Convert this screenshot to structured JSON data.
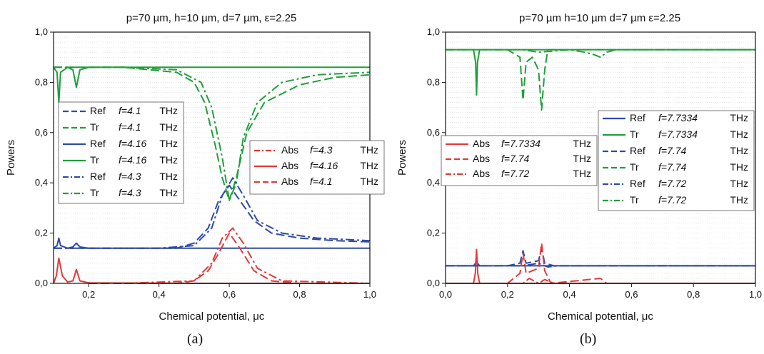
{
  "chart_data": [
    {
      "type": "line",
      "panel_label": "(a)",
      "title": "p=70 µm, h=10 µm, d=7 µm, ε=2.25",
      "xlabel": "Chemical potential, μc",
      "ylabel": "Powers",
      "xlim": [
        0.1,
        1.0
      ],
      "ylim": [
        0.0,
        1.0
      ],
      "x_ticks": [
        "0,2",
        "0,4",
        "0,6",
        "0,8",
        "1,0"
      ],
      "y_ticks": [
        "0,0",
        "0,2",
        "0,4",
        "0,6",
        "0,8",
        "1,0"
      ],
      "grid": "horizontal minor",
      "colors": {
        "ref": "#2e4aa8",
        "tr": "#1e9e3a",
        "abs": "#e43a3a"
      },
      "legends": [
        {
          "placement": "left",
          "entries": [
            {
              "name": "Ref",
              "freq": "f=4.1",
              "unit": "THz",
              "color": "#2e4aa8",
              "dash": "dash"
            },
            {
              "name": "Tr",
              "freq": "f=4.1",
              "unit": "THz",
              "color": "#1e9e3a",
              "dash": "dash"
            },
            {
              "name": "Ref",
              "freq": "f=4.16",
              "unit": "THz",
              "color": "#2e4aa8",
              "dash": "solid"
            },
            {
              "name": "Tr",
              "freq": "f=4.16",
              "unit": "THz",
              "color": "#1e9e3a",
              "dash": "solid"
            },
            {
              "name": "Ref",
              "freq": "f=4.3",
              "unit": "THz",
              "color": "#2e4aa8",
              "dash": "dashdot"
            },
            {
              "name": "Tr",
              "freq": "f=4.3",
              "unit": "THz",
              "color": "#1e9e3a",
              "dash": "dashdot"
            }
          ]
        },
        {
          "placement": "center-right",
          "entries": [
            {
              "name": "Abs",
              "freq": "f=4.3",
              "unit": "THz",
              "color": "#e43a3a",
              "dash": "dashdot"
            },
            {
              "name": "Abs",
              "freq": "f=4.16",
              "unit": "THz",
              "color": "#e43a3a",
              "dash": "solid"
            },
            {
              "name": "Abs",
              "freq": "f=4.1",
              "unit": "THz",
              "color": "#e43a3a",
              "dash": "dash"
            }
          ]
        }
      ],
      "series": [
        {
          "key": "Tr f=4.16",
          "color": "#1e9e3a",
          "dash": "solid",
          "x": [
            0.1,
            0.11,
            0.115,
            0.12,
            0.14,
            0.155,
            0.165,
            0.175,
            0.2,
            0.3,
            0.5,
            0.7,
            1.0
          ],
          "y": [
            0.86,
            0.84,
            0.72,
            0.84,
            0.86,
            0.85,
            0.78,
            0.85,
            0.86,
            0.86,
            0.86,
            0.86,
            0.86
          ]
        },
        {
          "key": "Ref f=4.16",
          "color": "#2e4aa8",
          "dash": "solid",
          "x": [
            0.1,
            0.11,
            0.115,
            0.12,
            0.14,
            0.155,
            0.165,
            0.175,
            0.2,
            0.5,
            1.0
          ],
          "y": [
            0.14,
            0.15,
            0.18,
            0.15,
            0.14,
            0.145,
            0.16,
            0.145,
            0.14,
            0.14,
            0.14
          ]
        },
        {
          "key": "Abs f=4.16",
          "color": "#e43a3a",
          "dash": "solid",
          "x": [
            0.1,
            0.108,
            0.115,
            0.125,
            0.14,
            0.155,
            0.165,
            0.175,
            0.2,
            0.5,
            1.0
          ],
          "y": [
            0.0,
            0.03,
            0.1,
            0.03,
            0.005,
            0.01,
            0.055,
            0.01,
            0.002,
            0.0,
            0.0
          ]
        },
        {
          "key": "Tr f=4.1",
          "color": "#1e9e3a",
          "dash": "dash",
          "x": [
            0.1,
            0.3,
            0.45,
            0.5,
            0.53,
            0.56,
            0.58,
            0.6,
            0.62,
            0.65,
            0.7,
            0.8,
            0.9,
            1.0
          ],
          "y": [
            0.86,
            0.86,
            0.84,
            0.8,
            0.72,
            0.55,
            0.42,
            0.33,
            0.42,
            0.6,
            0.72,
            0.79,
            0.82,
            0.83
          ]
        },
        {
          "key": "Ref f=4.1",
          "color": "#2e4aa8",
          "dash": "dash",
          "x": [
            0.1,
            0.3,
            0.45,
            0.5,
            0.54,
            0.57,
            0.6,
            0.63,
            0.67,
            0.72,
            0.8,
            0.9,
            1.0
          ],
          "y": [
            0.14,
            0.14,
            0.14,
            0.16,
            0.22,
            0.33,
            0.39,
            0.33,
            0.25,
            0.2,
            0.18,
            0.17,
            0.165
          ]
        },
        {
          "key": "Abs f=4.1",
          "color": "#e43a3a",
          "dash": "dash",
          "x": [
            0.2,
            0.45,
            0.5,
            0.54,
            0.57,
            0.6,
            0.63,
            0.67,
            0.72,
            0.8,
            1.0
          ],
          "y": [
            0.0,
            0.0,
            0.01,
            0.05,
            0.12,
            0.2,
            0.14,
            0.05,
            0.01,
            0.0,
            0.0
          ]
        },
        {
          "key": "Tr f=4.3",
          "color": "#1e9e3a",
          "dash": "dashdot",
          "x": [
            0.1,
            0.3,
            0.45,
            0.52,
            0.55,
            0.58,
            0.6,
            0.62,
            0.64,
            0.68,
            0.75,
            0.85,
            1.0
          ],
          "y": [
            0.86,
            0.86,
            0.85,
            0.8,
            0.7,
            0.5,
            0.33,
            0.4,
            0.58,
            0.72,
            0.8,
            0.83,
            0.84
          ]
        },
        {
          "key": "Ref f=4.3",
          "color": "#2e4aa8",
          "dash": "dashdot",
          "x": [
            0.1,
            0.4,
            0.5,
            0.55,
            0.58,
            0.61,
            0.64,
            0.68,
            0.75,
            0.85,
            1.0
          ],
          "y": [
            0.14,
            0.14,
            0.15,
            0.22,
            0.35,
            0.42,
            0.35,
            0.25,
            0.2,
            0.18,
            0.17
          ]
        },
        {
          "key": "Abs f=4.3",
          "color": "#e43a3a",
          "dash": "dashdot",
          "x": [
            0.3,
            0.5,
            0.55,
            0.58,
            0.61,
            0.64,
            0.68,
            0.75,
            1.0
          ],
          "y": [
            0.0,
            0.01,
            0.08,
            0.18,
            0.22,
            0.16,
            0.06,
            0.01,
            0.0
          ]
        }
      ]
    },
    {
      "type": "line",
      "panel_label": "(b)",
      "title": "p=70 µm h=10 µm d=7 µm ε=2.25",
      "xlabel": "Chemical potential, μc",
      "ylabel": "Powers",
      "xlim": [
        0.0,
        1.0
      ],
      "ylim": [
        0.0,
        1.0
      ],
      "x_ticks": [
        "0,0",
        "0,2",
        "0,4",
        "0,6",
        "0,8",
        "1,0"
      ],
      "y_ticks": [
        "0,0",
        "0,2",
        "0,4",
        "0,6",
        "0,8",
        "1,0"
      ],
      "grid": "horizontal minor",
      "legends": [
        {
          "placement": "center-left",
          "entries": [
            {
              "name": "Abs",
              "freq": "f=7.7334",
              "unit": "THz",
              "color": "#e43a3a",
              "dash": "solid"
            },
            {
              "name": "Abs",
              "freq": "f=7.74",
              "unit": "THz",
              "color": "#e43a3a",
              "dash": "dash"
            },
            {
              "name": "Abs",
              "freq": "f=7.72",
              "unit": "THz",
              "color": "#e43a3a",
              "dash": "dashdot"
            }
          ]
        },
        {
          "placement": "right",
          "entries": [
            {
              "name": "Ref",
              "freq": "f=7.7334",
              "unit": "THz",
              "color": "#2e4aa8",
              "dash": "solid"
            },
            {
              "name": "Tr",
              "freq": "f=7.7334",
              "unit": "THz",
              "color": "#1e9e3a",
              "dash": "solid"
            },
            {
              "name": "Ref",
              "freq": "f=7.74",
              "unit": "THz",
              "color": "#2e4aa8",
              "dash": "dash"
            },
            {
              "name": "Tr",
              "freq": "f=7.74",
              "unit": "THz",
              "color": "#1e9e3a",
              "dash": "dash"
            },
            {
              "name": "Ref",
              "freq": "f=7.72",
              "unit": "THz",
              "color": "#2e4aa8",
              "dash": "dashdot"
            },
            {
              "name": "Tr",
              "freq": "f=7.72",
              "unit": "THz",
              "color": "#1e9e3a",
              "dash": "dashdot"
            }
          ]
        }
      ],
      "series": [
        {
          "key": "Tr f=7.7334",
          "color": "#1e9e3a",
          "dash": "solid",
          "x": [
            0.0,
            0.09,
            0.097,
            0.1,
            0.103,
            0.11,
            0.2,
            1.0
          ],
          "y": [
            0.93,
            0.93,
            0.88,
            0.75,
            0.88,
            0.93,
            0.93,
            0.93
          ]
        },
        {
          "key": "Ref f=7.7334",
          "color": "#2e4aa8",
          "dash": "solid",
          "x": [
            0.0,
            0.09,
            0.097,
            0.1,
            0.103,
            0.11,
            0.2,
            1.0
          ],
          "y": [
            0.07,
            0.07,
            0.08,
            0.11,
            0.08,
            0.07,
            0.07,
            0.07
          ]
        },
        {
          "key": "Abs f=7.7334",
          "color": "#e43a3a",
          "dash": "solid",
          "x": [
            0.0,
            0.09,
            0.096,
            0.1,
            0.104,
            0.11,
            0.2,
            1.0
          ],
          "y": [
            0.0,
            0.0,
            0.04,
            0.135,
            0.04,
            0.0,
            0.0,
            0.0
          ]
        },
        {
          "key": "Tr f=7.74",
          "color": "#1e9e3a",
          "dash": "dash",
          "x": [
            0.0,
            0.2,
            0.24,
            0.25,
            0.26,
            0.28,
            0.3,
            0.31,
            0.32,
            0.33,
            0.5,
            1.0
          ],
          "y": [
            0.93,
            0.93,
            0.9,
            0.73,
            0.88,
            0.9,
            0.85,
            0.69,
            0.85,
            0.93,
            0.93,
            0.93
          ]
        },
        {
          "key": "Ref f=7.74",
          "color": "#2e4aa8",
          "dash": "dash",
          "x": [
            0.0,
            0.2,
            0.24,
            0.25,
            0.26,
            0.3,
            0.31,
            0.32,
            0.35,
            0.5,
            1.0
          ],
          "y": [
            0.07,
            0.07,
            0.08,
            0.13,
            0.08,
            0.09,
            0.14,
            0.08,
            0.07,
            0.07,
            0.07
          ]
        },
        {
          "key": "Abs f=7.74",
          "color": "#e43a3a",
          "dash": "dash",
          "x": [
            0.0,
            0.2,
            0.24,
            0.25,
            0.26,
            0.3,
            0.31,
            0.32,
            0.34,
            0.5,
            0.52,
            1.0
          ],
          "y": [
            0.0,
            0.0,
            0.04,
            0.12,
            0.04,
            0.06,
            0.16,
            0.05,
            0.0,
            0.02,
            0.0,
            0.0
          ]
        },
        {
          "key": "Tr f=7.72",
          "color": "#1e9e3a",
          "dash": "dashdot",
          "x": [
            0.0,
            0.25,
            0.3,
            0.4,
            0.45,
            0.48,
            0.5,
            0.52,
            0.55,
            1.0
          ],
          "y": [
            0.93,
            0.93,
            0.92,
            0.93,
            0.92,
            0.91,
            0.9,
            0.92,
            0.93,
            0.93
          ]
        },
        {
          "key": "Ref f=7.72",
          "color": "#2e4aa8",
          "dash": "dashdot",
          "x": [
            0.0,
            0.25,
            0.3,
            0.33,
            0.36,
            0.5,
            1.0
          ],
          "y": [
            0.07,
            0.07,
            0.08,
            0.065,
            0.07,
            0.07,
            0.07
          ]
        },
        {
          "key": "Abs f=7.72",
          "color": "#e43a3a",
          "dash": "dashdot",
          "x": [
            0.0,
            0.25,
            0.27,
            0.3,
            0.32,
            0.35,
            0.5,
            1.0
          ],
          "y": [
            0.0,
            0.0,
            0.02,
            0.0,
            0.015,
            0.0,
            0.0,
            0.0
          ]
        }
      ]
    }
  ]
}
